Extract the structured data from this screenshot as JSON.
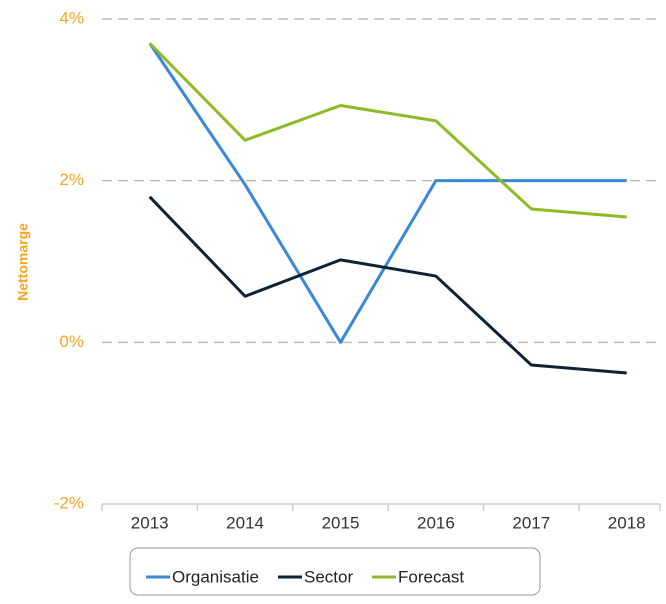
{
  "chart_data": {
    "type": "line",
    "y_label": "Nettomarge",
    "categories": [
      "2013",
      "2014",
      "2015",
      "2016",
      "2017",
      "2018"
    ],
    "series": [
      {
        "name": "Organisatie",
        "color": "#3a87d6",
        "values": [
          3.7,
          1.95,
          0,
          2.0,
          2.0,
          2.0
        ]
      },
      {
        "name": "Sector",
        "color": "#0e2236",
        "values": [
          1.8,
          0.57,
          1.02,
          0.82,
          -0.28,
          -0.38
        ]
      },
      {
        "name": "Forecast",
        "color": "#8dbb25",
        "values": [
          3.7,
          2.5,
          2.93,
          2.74,
          1.65,
          1.55
        ]
      }
    ],
    "ylim": [
      -2,
      4
    ],
    "yticks": [
      {
        "value": -2,
        "label": "-2%"
      },
      {
        "value": 0,
        "label": "0%"
      },
      {
        "value": 2,
        "label": "2%"
      },
      {
        "value": 4,
        "label": "4%"
      }
    ],
    "grid": true,
    "legend": "bottom"
  }
}
